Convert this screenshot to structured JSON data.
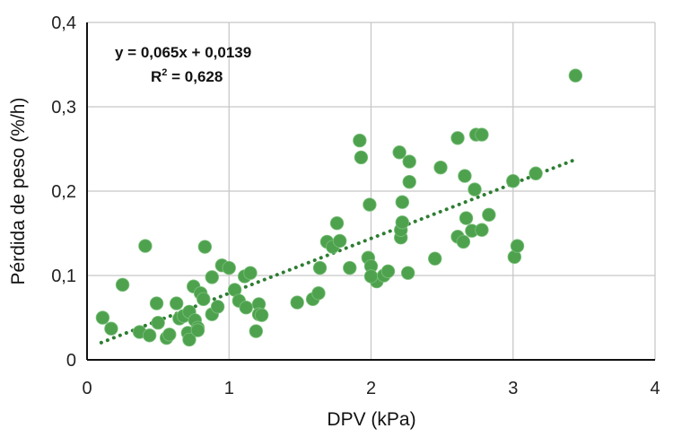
{
  "chart_data": {
    "type": "scatter",
    "title": "",
    "xlabel": "DPV (kPa)",
    "ylabel": "Pérdida de peso (%/h)",
    "xlim": [
      0,
      4
    ],
    "ylim": [
      0,
      0.4
    ],
    "xticks": [
      0,
      1,
      2,
      3,
      4
    ],
    "xtick_labels": [
      "0",
      "1",
      "2",
      "3",
      "4"
    ],
    "yticks": [
      0,
      0.1,
      0.2,
      0.3,
      0.4
    ],
    "ytick_labels": [
      "0",
      "0,1",
      "0,2",
      "0,3",
      "0,4"
    ],
    "grid": true,
    "marker_color": "#4ea24e",
    "trendline_color": "#2e7d32",
    "trendline": {
      "slope": 0.065,
      "intercept": 0.0139,
      "x_range": [
        0.1,
        3.42
      ]
    },
    "equation_label": "y = 0,065x + 0,0139",
    "r2_label_prefix": "R",
    "r2_label_sup": "2",
    "r2_label_value": " = 0,628",
    "points": [
      [
        0.11,
        0.05
      ],
      [
        0.17,
        0.037
      ],
      [
        0.25,
        0.089
      ],
      [
        0.37,
        0.033
      ],
      [
        0.41,
        0.135
      ],
      [
        0.44,
        0.029
      ],
      [
        0.49,
        0.067
      ],
      [
        0.5,
        0.044
      ],
      [
        0.56,
        0.026
      ],
      [
        0.58,
        0.03
      ],
      [
        0.63,
        0.067
      ],
      [
        0.65,
        0.049
      ],
      [
        0.68,
        0.052
      ],
      [
        0.71,
        0.032
      ],
      [
        0.72,
        0.024
      ],
      [
        0.72,
        0.057
      ],
      [
        0.75,
        0.087
      ],
      [
        0.76,
        0.047
      ],
      [
        0.78,
        0.038
      ],
      [
        0.78,
        0.035
      ],
      [
        0.8,
        0.079
      ],
      [
        0.82,
        0.072
      ],
      [
        0.83,
        0.134
      ],
      [
        0.88,
        0.054
      ],
      [
        0.88,
        0.098
      ],
      [
        0.92,
        0.063
      ],
      [
        0.95,
        0.112
      ],
      [
        1.0,
        0.109
      ],
      [
        1.04,
        0.083
      ],
      [
        1.07,
        0.07
      ],
      [
        1.11,
        0.099
      ],
      [
        1.12,
        0.062
      ],
      [
        1.15,
        0.103
      ],
      [
        1.19,
        0.034
      ],
      [
        1.21,
        0.066
      ],
      [
        1.21,
        0.054
      ],
      [
        1.23,
        0.053
      ],
      [
        1.48,
        0.068
      ],
      [
        1.59,
        0.072
      ],
      [
        1.63,
        0.079
      ],
      [
        1.64,
        0.109
      ],
      [
        1.69,
        0.14
      ],
      [
        1.73,
        0.134
      ],
      [
        1.76,
        0.162
      ],
      [
        1.78,
        0.141
      ],
      [
        1.85,
        0.109
      ],
      [
        1.92,
        0.26
      ],
      [
        1.93,
        0.24
      ],
      [
        1.98,
        0.121
      ],
      [
        1.99,
        0.184
      ],
      [
        2.0,
        0.111
      ],
      [
        2.04,
        0.093
      ],
      [
        2.0,
        0.099
      ],
      [
        2.09,
        0.1
      ],
      [
        2.12,
        0.105
      ],
      [
        2.2,
        0.246
      ],
      [
        2.21,
        0.145
      ],
      [
        2.21,
        0.154
      ],
      [
        2.22,
        0.163
      ],
      [
        2.22,
        0.187
      ],
      [
        2.27,
        0.235
      ],
      [
        2.27,
        0.211
      ],
      [
        2.26,
        0.103
      ],
      [
        2.45,
        0.12
      ],
      [
        2.49,
        0.228
      ],
      [
        2.61,
        0.263
      ],
      [
        2.61,
        0.146
      ],
      [
        2.65,
        0.14
      ],
      [
        2.66,
        0.218
      ],
      [
        2.67,
        0.168
      ],
      [
        2.71,
        0.153
      ],
      [
        2.73,
        0.202
      ],
      [
        2.74,
        0.267
      ],
      [
        2.78,
        0.267
      ],
      [
        2.78,
        0.154
      ],
      [
        2.83,
        0.172
      ],
      [
        3.0,
        0.212
      ],
      [
        3.01,
        0.122
      ],
      [
        3.03,
        0.135
      ],
      [
        3.16,
        0.221
      ],
      [
        3.44,
        0.337
      ]
    ]
  }
}
